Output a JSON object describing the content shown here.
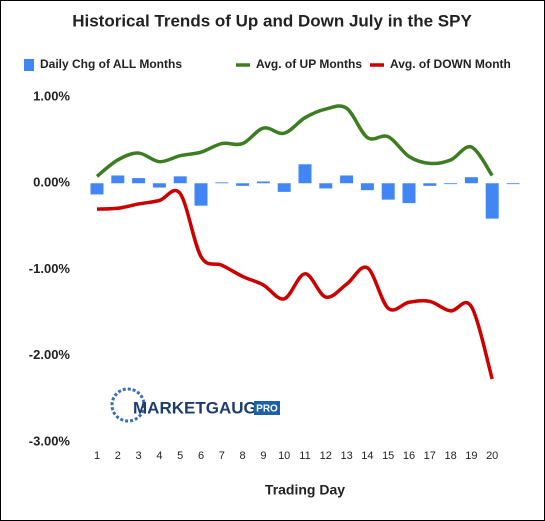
{
  "chart_data": {
    "type": "bar_line",
    "title": "Historical Trends of Up and Down July in the SPY",
    "x_label": "Trading Day",
    "categories": [
      "1",
      "2",
      "3",
      "4",
      "5",
      "6",
      "7",
      "8",
      "9",
      "10",
      "11",
      "12",
      "13",
      "14",
      "15",
      "16",
      "17",
      "18",
      "19",
      "20",
      null
    ],
    "series": [
      {
        "name": "Daily Chg of ALL Months",
        "type": "bar",
        "color": "#4285f4",
        "values": [
          -0.13,
          0.09,
          0.06,
          -0.05,
          0.08,
          -0.26,
          0.01,
          -0.03,
          0.02,
          -0.1,
          0.22,
          -0.06,
          0.09,
          -0.08,
          -0.19,
          -0.23,
          -0.03,
          -0.01,
          0.07,
          -0.41,
          -0.01
        ]
      },
      {
        "name": "Avg. of UP Months",
        "type": "line",
        "color": "#3c7d22",
        "values": [
          0.08,
          0.27,
          0.35,
          0.25,
          0.32,
          0.36,
          0.46,
          0.46,
          0.64,
          0.58,
          0.76,
          0.86,
          0.87,
          0.53,
          0.54,
          0.31,
          0.23,
          0.27,
          0.42,
          0.09,
          null
        ]
      },
      {
        "name": "Avg. of DOWN Month",
        "type": "line",
        "color": "#cc0000",
        "values": [
          -0.3,
          -0.29,
          -0.24,
          -0.2,
          -0.12,
          -0.85,
          -0.95,
          -1.08,
          -1.18,
          -1.34,
          -1.05,
          -1.32,
          -1.17,
          -0.98,
          -1.45,
          -1.38,
          -1.37,
          -1.48,
          -1.43,
          -2.27,
          null
        ]
      }
    ],
    "ylim": [
      -3,
      1
    ],
    "yticks": [
      {
        "value": 1,
        "label": "1.00%"
      },
      {
        "value": 0,
        "label": "0.00%"
      },
      {
        "value": -1,
        "label": "-1.00%"
      },
      {
        "value": -2,
        "label": "-2.00%"
      },
      {
        "value": -3,
        "label": "-3.00%"
      }
    ],
    "grid": false,
    "legend": "top",
    "logo": {
      "brand": "MARKETGAUGE",
      "badge": "PRO"
    }
  }
}
